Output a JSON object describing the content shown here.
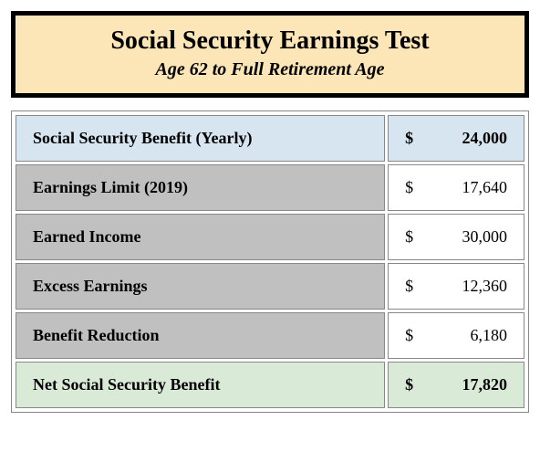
{
  "header": {
    "title": "Social Security Earnings Test",
    "subtitle": "Age 62 to Full Retirement Age",
    "background": "#fce5b6",
    "border_color": "#000000",
    "border_width": 5,
    "title_fontsize": 28,
    "subtitle_fontsize": 20
  },
  "table": {
    "border_color": "#888888",
    "spacing": 3,
    "row_colors": {
      "blue": "#d7e5f0",
      "gray_label": "#c0c0c0",
      "gray_value": "#ffffff",
      "green": "#d9ead7"
    },
    "currency_symbol": "$",
    "rows": [
      {
        "label": "Social Security Benefit (Yearly)",
        "value": "24,000",
        "style": "blue",
        "bold_value": true
      },
      {
        "label": "Earnings Limit (2019)",
        "value": "17,640",
        "style": "gray",
        "bold_value": false
      },
      {
        "label": "Earned Income",
        "value": "30,000",
        "style": "gray",
        "bold_value": false
      },
      {
        "label": "Excess Earnings",
        "value": "12,360",
        "style": "gray",
        "bold_value": false
      },
      {
        "label": "Benefit Reduction",
        "value": "6,180",
        "style": "gray",
        "bold_value": false
      },
      {
        "label": "Net Social Security Benefit",
        "value": "17,820",
        "style": "green",
        "bold_value": true
      }
    ]
  }
}
